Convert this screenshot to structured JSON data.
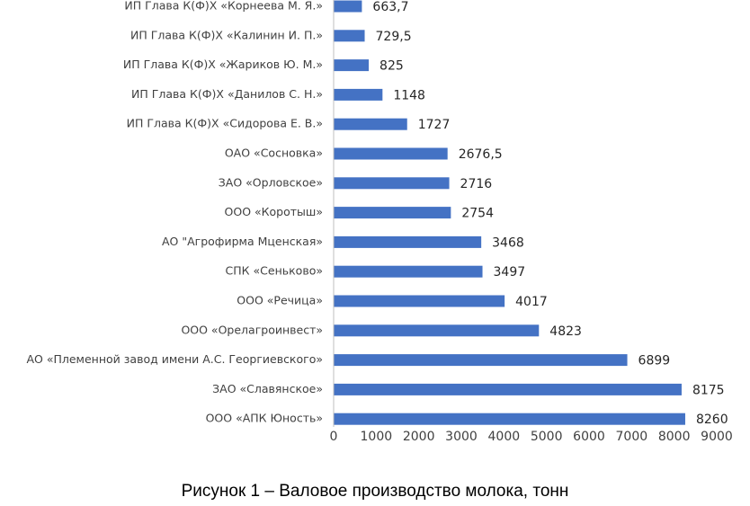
{
  "caption": "Рисунок 1 – Валовое производство молока, тонн",
  "colors": {
    "bar": "#4472C4",
    "axis": "#BFBFBF",
    "text": "#404040"
  },
  "chart_data": {
    "type": "bar",
    "orientation": "horizontal",
    "categories": [
      "ИП Глава К(Ф)Х «Корнеева М. Я.»",
      "ИП Глава К(Ф)Х «Калинин И. П.»",
      "ИП Глава К(Ф)Х «Жариков  Ю. М.»",
      "ИП Глава К(Ф)Х «Данилов С. Н.»",
      "ИП Глава К(Ф)Х «Сидорова  Е. В.»",
      "ОАО «Сосновка»",
      "ЗАО «Орловское»",
      "ООО «Коротыш»",
      "АО \"Агрофирма Мценская»",
      "СПК «Сеньково»",
      "ООО «Речица»",
      "ООО «Орелагроинвест»",
      "АО «Племенной завод имени А.С. Георгиевского»",
      "ЗАО «Славянское»",
      "ООО «АПК Юность»"
    ],
    "values": [
      663.7,
      729.5,
      825,
      1148,
      1727,
      2676.5,
      2716,
      2754,
      3468,
      3497,
      4017,
      4823,
      6899,
      8175,
      8260
    ],
    "value_labels": [
      "663,7",
      "729,5",
      "825",
      "1148",
      "1727",
      "2676,5",
      "2716",
      "2754",
      "3468",
      "3497",
      "4017",
      "4823",
      "6899",
      "8175",
      "8260"
    ],
    "xlim": [
      0,
      9000
    ],
    "xticks": [
      "0",
      "1000",
      "2000",
      "3000",
      "4000",
      "5000",
      "6000",
      "7000",
      "8000",
      "9000"
    ],
    "grid": false
  }
}
